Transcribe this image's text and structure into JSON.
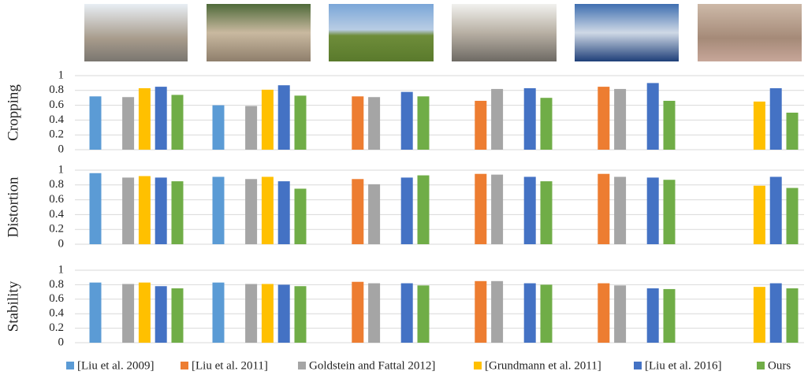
{
  "chart_data": [
    {
      "type": "bar",
      "y_label": "Cropping",
      "categories": [
        null,
        null,
        null,
        null,
        null,
        null
      ],
      "ylim": [
        0,
        1
      ],
      "yticks": [
        0,
        0.2,
        0.4,
        0.6,
        0.8,
        1
      ],
      "grid": true,
      "series": [
        {
          "name": "[Liu et al. 2009]",
          "color": "#5b9bd5",
          "values": [
            0.72,
            0.6,
            null,
            null,
            null,
            null
          ]
        },
        {
          "name": "[Liu et al. 2011]",
          "color": "#ed7d31",
          "values": [
            null,
            null,
            0.72,
            0.66,
            0.85,
            null
          ]
        },
        {
          "name": "Goldstein and Fattal 2012]",
          "color": "#a5a5a5",
          "values": [
            0.71,
            0.59,
            0.71,
            0.82,
            0.82,
            null
          ]
        },
        {
          "name": "[Grundmann et al. 2011]",
          "color": "#ffc000",
          "values": [
            0.83,
            0.81,
            null,
            null,
            null,
            0.65
          ]
        },
        {
          "name": "[Liu et al. 2016]",
          "color": "#4472c4",
          "values": [
            0.85,
            0.87,
            0.78,
            0.83,
            0.9,
            0.83
          ]
        },
        {
          "name": "Ours",
          "color": "#70ad47",
          "values": [
            0.74,
            0.73,
            0.72,
            0.7,
            0.66,
            0.5
          ]
        }
      ]
    },
    {
      "type": "bar",
      "y_label": "Distortion",
      "categories": [
        null,
        null,
        null,
        null,
        null,
        null
      ],
      "ylim": [
        0,
        1
      ],
      "yticks": [
        0,
        0.2,
        0.4,
        0.6,
        0.8,
        1
      ],
      "grid": true,
      "series": [
        {
          "color": "#5b9bd5",
          "values": [
            0.96,
            0.91,
            null,
            null,
            null,
            null
          ]
        },
        {
          "color": "#ed7d31",
          "values": [
            null,
            null,
            0.88,
            0.95,
            0.95,
            null
          ]
        },
        {
          "color": "#a5a5a5",
          "values": [
            0.9,
            0.88,
            0.81,
            0.94,
            0.91,
            null
          ]
        },
        {
          "color": "#ffc000",
          "values": [
            0.92,
            0.91,
            null,
            null,
            null,
            0.79
          ]
        },
        {
          "color": "#4472c4",
          "values": [
            0.9,
            0.85,
            0.9,
            0.91,
            0.9,
            0.91
          ]
        },
        {
          "color": "#70ad47",
          "values": [
            0.85,
            0.75,
            0.93,
            0.85,
            0.87,
            0.76
          ]
        }
      ]
    },
    {
      "type": "bar",
      "y_label": "Stability",
      "categories": [
        null,
        null,
        null,
        null,
        null,
        null
      ],
      "ylim": [
        0,
        1
      ],
      "yticks": [
        0,
        0.2,
        0.4,
        0.6,
        0.8,
        1
      ],
      "grid": true,
      "series": [
        {
          "color": "#5b9bd5",
          "values": [
            0.83,
            0.83,
            null,
            null,
            null,
            null
          ]
        },
        {
          "color": "#ed7d31",
          "values": [
            null,
            null,
            0.84,
            0.85,
            0.82,
            null
          ]
        },
        {
          "color": "#a5a5a5",
          "values": [
            0.81,
            0.81,
            0.82,
            0.85,
            0.79,
            null
          ]
        },
        {
          "color": "#ffc000",
          "values": [
            0.83,
            0.81,
            null,
            null,
            null,
            0.77
          ]
        },
        {
          "color": "#4472c4",
          "values": [
            0.78,
            0.8,
            0.82,
            0.82,
            0.75,
            0.82
          ]
        },
        {
          "color": "#70ad47",
          "values": [
            0.75,
            0.78,
            0.79,
            0.8,
            0.74,
            0.75
          ]
        }
      ]
    }
  ]
}
